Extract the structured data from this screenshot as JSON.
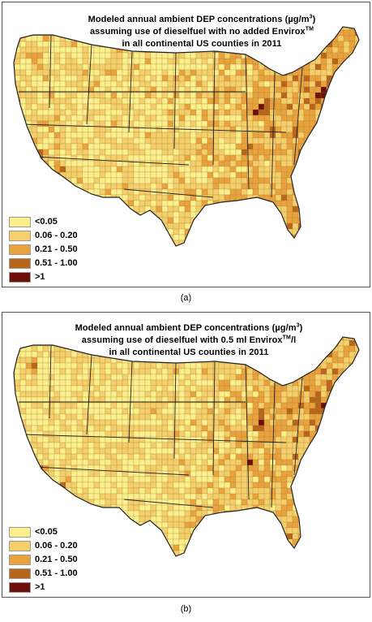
{
  "panels": [
    {
      "title_line1": "Modeled annual ambient DEP concentrations (µg/m",
      "title_sup1": "3",
      "title_line1_end": ")",
      "title_line2": "assuming use of dieselfuel with no added Envirox",
      "title_sup2": "TM",
      "title_line3": "in all continental US counties in 2011",
      "caption": "(a)"
    },
    {
      "title_line1": "Modeled annual ambient DEP concentrations (µg/m",
      "title_sup1": "3",
      "title_line1_end": ")",
      "title_line2": "assuming use of dieselfuel with 0.5 ml Envirox",
      "title_sup2": "TM",
      "title_line2_end": "/l",
      "title_line3": "in all continental US counties in 2011",
      "caption": "(b)"
    }
  ],
  "legend": [
    {
      "label": "<0.05",
      "color": "#fbf08c"
    },
    {
      "label": "0.06 - 0.20",
      "color": "#f4cf6a"
    },
    {
      "label": "0.21 - 0.50",
      "color": "#e9a23c"
    },
    {
      "label": "0.51 - 1.00",
      "color": "#b8661c"
    },
    {
      "label": ">1",
      "color": "#6e0f0a"
    }
  ]
}
